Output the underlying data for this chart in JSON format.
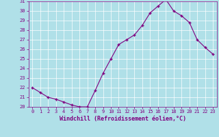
{
  "x": [
    0,
    1,
    2,
    3,
    4,
    5,
    6,
    7,
    8,
    9,
    10,
    11,
    12,
    13,
    14,
    15,
    16,
    17,
    18,
    19,
    20,
    21,
    22,
    23
  ],
  "y": [
    22,
    21.5,
    21,
    20.8,
    20.5,
    20.2,
    20.0,
    20.0,
    21.7,
    23.5,
    25.0,
    26.5,
    27.0,
    27.5,
    28.5,
    29.8,
    30.5,
    31.2,
    30.0,
    29.5,
    28.8,
    27.0,
    26.2,
    25.5
  ],
  "line_color": "#800080",
  "marker": "+",
  "marker_size": 3,
  "marker_linewidth": 1.0,
  "background_color": "#b0e0e8",
  "grid_color": "#ffffff",
  "xlabel": "Windchill (Refroidissement éolien,°C)",
  "xlabel_color": "#800080",
  "tick_color": "#800080",
  "ylim": [
    20,
    31
  ],
  "xlim": [
    -0.5,
    23.5
  ],
  "yticks": [
    20,
    21,
    22,
    23,
    24,
    25,
    26,
    27,
    28,
    29,
    30,
    31
  ],
  "xticks": [
    0,
    1,
    2,
    3,
    4,
    5,
    6,
    7,
    8,
    9,
    10,
    11,
    12,
    13,
    14,
    15,
    16,
    17,
    18,
    19,
    20,
    21,
    22,
    23
  ],
  "tick_fontsize": 5,
  "xlabel_fontsize": 6
}
